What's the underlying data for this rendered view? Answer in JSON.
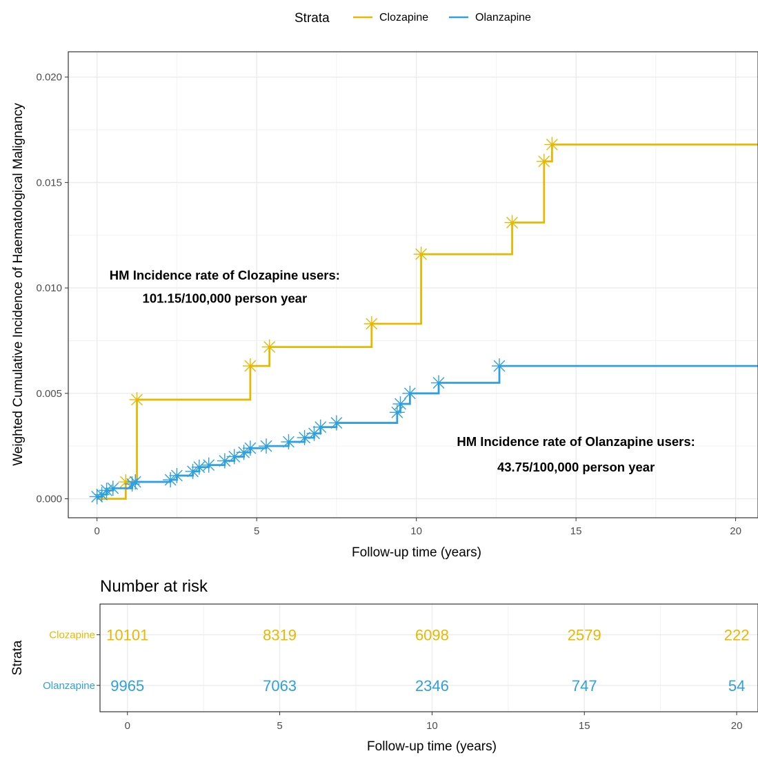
{
  "colors": {
    "clozapine": "#E7B800",
    "olanzapine": "#2E9FDF"
  },
  "legend": {
    "title": "Strata",
    "items": [
      {
        "label": "Clozapine",
        "color": "#E7B800"
      },
      {
        "label": "Olanzapine",
        "color": "#2E9FDF"
      }
    ]
  },
  "chart_data": [
    {
      "type": "line",
      "step": true,
      "xlabel": "Follow-up time (years)",
      "ylabel": "Weighted Cumulative Incidence of Haematological Malignancy",
      "xlim": [
        -0.9,
        20.7
      ],
      "ylim": [
        -0.0009,
        0.0212
      ],
      "xticks": [
        "0",
        "5",
        "10",
        "15",
        "20"
      ],
      "yticks": [
        "0.000",
        "0.005",
        "0.010",
        "0.015",
        "0.020"
      ],
      "grid": true,
      "legend_position": "top",
      "series": [
        {
          "name": "Clozapine",
          "color": "#E7B800",
          "x": [
            0,
            0.9,
            1.25,
            4.8,
            5.4,
            8.6,
            10.15,
            13,
            14,
            14.25,
            20.7
          ],
          "y": [
            0,
            0.0008,
            0.0047,
            0.0063,
            0.0072,
            0.0083,
            0.0116,
            0.0131,
            0.016,
            0.0168,
            0.0168
          ],
          "censor_x": [
            0.9,
            1.25,
            4.8,
            5.4,
            8.6,
            10.15,
            13,
            14,
            14.25
          ],
          "censor_y": [
            0.0008,
            0.0047,
            0.0063,
            0.0072,
            0.0083,
            0.0116,
            0.0131,
            0.016,
            0.0168
          ]
        },
        {
          "name": "Olanzapine",
          "color": "#2E9FDF",
          "x": [
            0,
            0.15,
            0.3,
            0.5,
            1.1,
            1.2,
            2.3,
            2.5,
            3.0,
            3.2,
            3.5,
            4.0,
            4.3,
            4.6,
            4.8,
            5.3,
            6.0,
            6.5,
            6.8,
            7.0,
            7.5,
            9.4,
            9.5,
            9.8,
            10.7,
            12.6,
            20.7
          ],
          "y": [
            0.0001,
            0.0002,
            0.0004,
            0.0005,
            0.0007,
            0.0008,
            0.0009,
            0.0011,
            0.0013,
            0.0015,
            0.0016,
            0.0018,
            0.002,
            0.0022,
            0.0024,
            0.0025,
            0.0027,
            0.0029,
            0.0031,
            0.0034,
            0.0036,
            0.0041,
            0.0045,
            0.005,
            0.0055,
            0.0063,
            0.0063
          ],
          "censor_x": [
            0,
            0.15,
            0.3,
            0.5,
            1.1,
            1.2,
            2.3,
            2.5,
            3.0,
            3.2,
            3.5,
            4.0,
            4.3,
            4.6,
            4.8,
            5.3,
            6.0,
            6.5,
            6.8,
            7.0,
            7.5,
            9.4,
            9.5,
            9.8,
            10.7,
            12.6
          ],
          "censor_y": [
            0.0001,
            0.0002,
            0.0004,
            0.0005,
            0.0007,
            0.0008,
            0.0009,
            0.0011,
            0.0013,
            0.0015,
            0.0016,
            0.0018,
            0.002,
            0.0022,
            0.0024,
            0.0025,
            0.0027,
            0.0029,
            0.0031,
            0.0034,
            0.0036,
            0.0041,
            0.0045,
            0.005,
            0.0055,
            0.0063
          ]
        }
      ],
      "annotations": [
        {
          "text": "HM Incidence rate of Clozapine users:",
          "x": 4,
          "y": 0.0104
        },
        {
          "text": "101.15/100,000 person year",
          "x": 4,
          "y": 0.0093
        },
        {
          "text": "HM Incidence rate of Olanzapine users:",
          "x": 15,
          "y": 0.0025
        },
        {
          "text": "43.75/100,000 person year",
          "x": 15,
          "y": 0.0013
        }
      ]
    },
    {
      "type": "table",
      "title": "Number at risk",
      "xlabel": "Follow-up time (years)",
      "ylabel": "Strata",
      "xlim": [
        -0.9,
        20.7
      ],
      "xticks": [
        "0",
        "5",
        "10",
        "15",
        "20"
      ],
      "times": [
        0,
        5,
        10,
        15,
        20
      ],
      "rows": [
        {
          "name": "Clozapine",
          "color": "#E7B800",
          "values": [
            10101,
            8319,
            6098,
            2579,
            222
          ]
        },
        {
          "name": "Olanzapine",
          "color": "#2E9FDF",
          "values": [
            9965,
            7063,
            2346,
            747,
            54
          ]
        }
      ]
    }
  ]
}
